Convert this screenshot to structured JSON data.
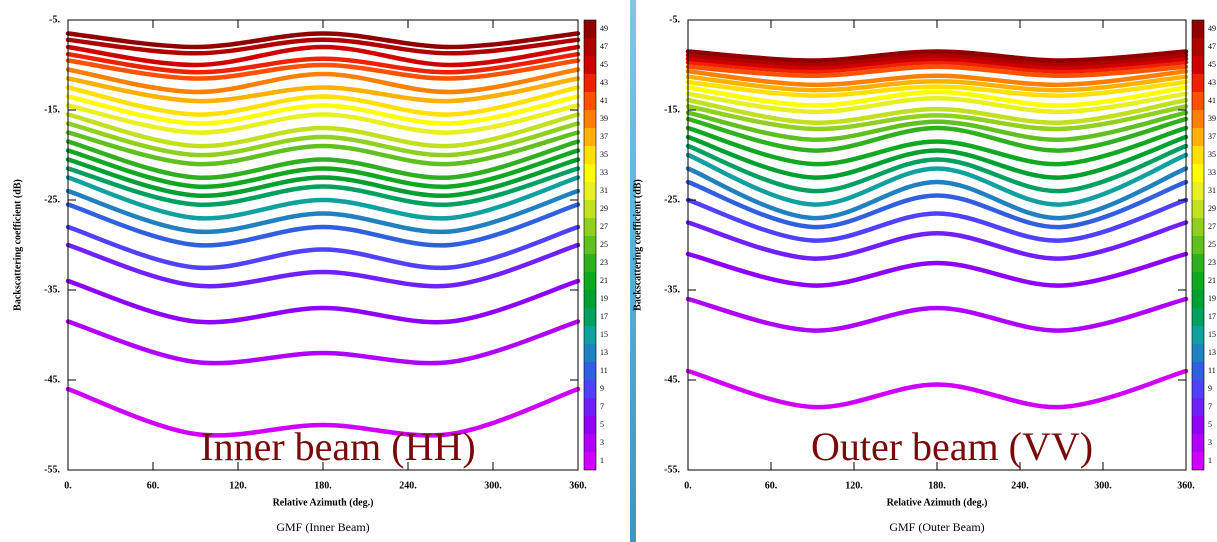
{
  "chart_data": [
    {
      "type": "line",
      "title": "GMF (Inner Beam)",
      "annotation": "Inner beam (HH)",
      "x_label": "Relative Azimuth (deg.)",
      "y_label": "Backscattering coefficient (dB)",
      "x": [
        0,
        90,
        180,
        270,
        360
      ],
      "xlim": [
        0,
        360
      ],
      "ylim": [
        -55,
        -5
      ],
      "xticks": [
        {
          "value": 0,
          "label": "0."
        },
        {
          "value": 60,
          "label": "60."
        },
        {
          "value": 120,
          "label": "120."
        },
        {
          "value": 180,
          "label": "180."
        },
        {
          "value": 240,
          "label": "240."
        },
        {
          "value": 300,
          "label": "300."
        },
        {
          "value": 360,
          "label": "360."
        }
      ],
      "yticks": [
        {
          "value": -55,
          "label": "-55."
        },
        {
          "value": -45,
          "label": "-45."
        },
        {
          "value": -35,
          "label": "-35."
        },
        {
          "value": -25,
          "label": "-25."
        },
        {
          "value": -15,
          "label": "-15."
        },
        {
          "value": -5,
          "label": "-5."
        }
      ],
      "series": [
        {
          "name": "1",
          "color": "#d000ff",
          "values": [
            -46,
            -51,
            -50,
            -51,
            -46
          ]
        },
        {
          "name": "3",
          "color": "#b000ff",
          "values": [
            -38.5,
            -43,
            -42,
            -43,
            -38.5
          ]
        },
        {
          "name": "5",
          "color": "#9000ff",
          "values": [
            -34,
            -38.5,
            -37,
            -38.5,
            -34
          ]
        },
        {
          "name": "7",
          "color": "#7020ff",
          "values": [
            -30,
            -34.5,
            -33,
            -34.5,
            -30
          ]
        },
        {
          "name": "9",
          "color": "#5040ff",
          "values": [
            -28,
            -32.5,
            -30.5,
            -32.5,
            -28
          ]
        },
        {
          "name": "11",
          "color": "#3060e0",
          "values": [
            -25.5,
            -30,
            -28,
            -30,
            -25.5
          ]
        },
        {
          "name": "13",
          "color": "#2080c0",
          "values": [
            -24,
            -28.5,
            -26.5,
            -28.5,
            -24
          ]
        },
        {
          "name": "15",
          "color": "#10a0a0",
          "values": [
            -22.5,
            -27,
            -25,
            -27,
            -22.5
          ]
        },
        {
          "name": "17",
          "color": "#00a060",
          "values": [
            -21.5,
            -25.5,
            -23.5,
            -25.5,
            -21.5
          ]
        },
        {
          "name": "19",
          "color": "#00a030",
          "values": [
            -20.5,
            -24.5,
            -22.5,
            -24.5,
            -20.5
          ]
        },
        {
          "name": "21",
          "color": "#10a820",
          "values": [
            -19.5,
            -23.5,
            -21.5,
            -23.5,
            -19.5
          ]
        },
        {
          "name": "23",
          "color": "#30b020",
          "values": [
            -18.5,
            -22.5,
            -20.5,
            -22.5,
            -18.5
          ]
        },
        {
          "name": "25",
          "color": "#60c020",
          "values": [
            -17.5,
            -21,
            -19,
            -21,
            -17.5
          ]
        },
        {
          "name": "27",
          "color": "#90d020",
          "values": [
            -16.5,
            -20,
            -18,
            -20,
            -16.5
          ]
        },
        {
          "name": "29",
          "color": "#c0e020",
          "values": [
            -15.5,
            -19,
            -17,
            -19,
            -15.5
          ]
        },
        {
          "name": "31",
          "color": "#e8f020",
          "values": [
            -14.5,
            -17.5,
            -15.5,
            -17.5,
            -14.5
          ]
        },
        {
          "name": "33",
          "color": "#ffff00",
          "values": [
            -13.5,
            -16.5,
            -14.5,
            -16.5,
            -13.5
          ]
        },
        {
          "name": "35",
          "color": "#ffe000",
          "values": [
            -12.5,
            -15.5,
            -13.5,
            -15.5,
            -12.5
          ]
        },
        {
          "name": "37",
          "color": "#ffb000",
          "values": [
            -11.5,
            -14,
            -12.5,
            -14,
            -11.5
          ]
        },
        {
          "name": "39",
          "color": "#ff8000",
          "values": [
            -10.5,
            -13,
            -11,
            -13,
            -10.5
          ]
        },
        {
          "name": "41",
          "color": "#ff5000",
          "values": [
            -9.5,
            -11.5,
            -10,
            -11.5,
            -9.5
          ]
        },
        {
          "name": "43",
          "color": "#f02000",
          "values": [
            -8.8,
            -10.8,
            -9.3,
            -10.8,
            -8.8
          ]
        },
        {
          "name": "45",
          "color": "#d00000",
          "values": [
            -8,
            -10,
            -8,
            -10,
            -8
          ]
        },
        {
          "name": "47",
          "color": "#b00000",
          "values": [
            -7.2,
            -8.7,
            -7.2,
            -8.7,
            -7.2
          ]
        },
        {
          "name": "49",
          "color": "#900000",
          "values": [
            -6.5,
            -8,
            -6.5,
            -8,
            -6.5
          ]
        }
      ]
    },
    {
      "type": "line",
      "title": "GMF (Outer Beam)",
      "annotation": "Outer beam (VV)",
      "x_label": "Relative Azimuth (deg.)",
      "y_label": "Backscattering coefficient (dB)",
      "x": [
        0,
        90,
        180,
        270,
        360
      ],
      "xlim": [
        0,
        360
      ],
      "ylim": [
        -55,
        -5
      ],
      "xticks": [
        {
          "value": 0,
          "label": "0."
        },
        {
          "value": 60,
          "label": "60."
        },
        {
          "value": 120,
          "label": "120."
        },
        {
          "value": 180,
          "label": "180."
        },
        {
          "value": 240,
          "label": "240."
        },
        {
          "value": 300,
          "label": "300."
        },
        {
          "value": 360,
          "label": "360."
        }
      ],
      "yticks": [
        {
          "value": -55,
          "label": "-55."
        },
        {
          "value": -45,
          "label": "-45."
        },
        {
          "value": -35,
          "label": "-35."
        },
        {
          "value": -25,
          "label": "-25."
        },
        {
          "value": -15,
          "label": "-15."
        },
        {
          "value": -5,
          "label": "-5."
        }
      ],
      "series": [
        {
          "name": "1",
          "color": "#d000ff",
          "values": [
            -44,
            -48,
            -45.5,
            -48,
            -44
          ]
        },
        {
          "name": "3",
          "color": "#b000ff",
          "values": [
            -36,
            -39.5,
            -37,
            -39.5,
            -36
          ]
        },
        {
          "name": "5",
          "color": "#9000ff",
          "values": [
            -31,
            -34.5,
            -32,
            -34.5,
            -31
          ]
        },
        {
          "name": "7",
          "color": "#7020ff",
          "values": [
            -27.5,
            -31.5,
            -28.7,
            -31.5,
            -27.5
          ]
        },
        {
          "name": "9",
          "color": "#5040ff",
          "values": [
            -25,
            -29.5,
            -26.5,
            -29.5,
            -25
          ]
        },
        {
          "name": "11",
          "color": "#3060e0",
          "values": [
            -23,
            -28,
            -24.5,
            -28,
            -23
          ]
        },
        {
          "name": "13",
          "color": "#2080c0",
          "values": [
            -21.5,
            -27,
            -23,
            -27,
            -21.5
          ]
        },
        {
          "name": "15",
          "color": "#10a0a0",
          "values": [
            -20,
            -25.5,
            -21.5,
            -25.5,
            -20
          ]
        },
        {
          "name": "17",
          "color": "#00a060",
          "values": [
            -19,
            -24,
            -20.5,
            -24,
            -19
          ]
        },
        {
          "name": "19",
          "color": "#00a030",
          "values": [
            -18,
            -22.5,
            -19.5,
            -22.5,
            -18
          ]
        },
        {
          "name": "21",
          "color": "#10a820",
          "values": [
            -17,
            -21,
            -18.5,
            -21,
            -17
          ]
        },
        {
          "name": "23",
          "color": "#30b020",
          "values": [
            -16,
            -19.5,
            -17,
            -19.5,
            -16
          ]
        },
        {
          "name": "25",
          "color": "#60c020",
          "values": [
            -15.3,
            -18.3,
            -16.3,
            -18.3,
            -15.3
          ]
        },
        {
          "name": "27",
          "color": "#90d020",
          "values": [
            -14.6,
            -17.1,
            -15.6,
            -17.1,
            -14.6
          ]
        },
        {
          "name": "29",
          "color": "#c0e020",
          "values": [
            -13.9,
            -16.4,
            -14.9,
            -16.4,
            -13.9
          ]
        },
        {
          "name": "31",
          "color": "#e8f020",
          "values": [
            -13.2,
            -15.2,
            -13.7,
            -15.2,
            -13.2
          ]
        },
        {
          "name": "33",
          "color": "#ffff00",
          "values": [
            -12.5,
            -14.5,
            -13,
            -14.5,
            -12.5
          ]
        },
        {
          "name": "35",
          "color": "#ffe000",
          "values": [
            -11.9,
            -13.4,
            -12.4,
            -13.4,
            -11.9
          ]
        },
        {
          "name": "37",
          "color": "#ffb000",
          "values": [
            -11.3,
            -12.8,
            -11.8,
            -12.8,
            -11.3
          ]
        },
        {
          "name": "39",
          "color": "#ff8000",
          "values": [
            -10.7,
            -12.2,
            -11.2,
            -12.2,
            -10.7
          ]
        },
        {
          "name": "41",
          "color": "#ff5000",
          "values": [
            -10.2,
            -11.2,
            -10.2,
            -11.2,
            -10.2
          ]
        },
        {
          "name": "43",
          "color": "#f02000",
          "values": [
            -9.7,
            -10.7,
            -9.7,
            -10.7,
            -9.7
          ]
        },
        {
          "name": "45",
          "color": "#d00000",
          "values": [
            -9.3,
            -10.3,
            -9.3,
            -10.3,
            -9.3
          ]
        },
        {
          "name": "47",
          "color": "#b00000",
          "values": [
            -8.9,
            -9.9,
            -8.9,
            -9.9,
            -8.9
          ]
        },
        {
          "name": "49",
          "color": "#900000",
          "values": [
            -8.5,
            -9.5,
            -8.5,
            -9.5,
            -8.5
          ]
        }
      ]
    }
  ]
}
